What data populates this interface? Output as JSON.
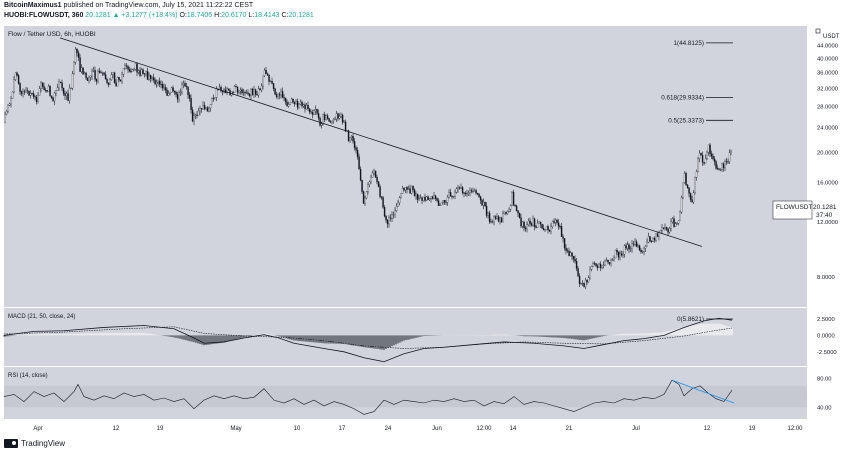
{
  "header": {
    "publisher": "BitcoinMaximus1",
    "published_text": "published on TradingView.com, July 15, 2021 11:22:22 CEST",
    "symbol": "HUOBI:FLOWUSDT, 360",
    "last_price": "20.1281",
    "arrow": "▲",
    "change": "+3.1277 (+18.4%)",
    "o_label": "O:",
    "o_value": "18.7406",
    "h_label": "H:",
    "h_value": "20.6170",
    "l_label": "L:",
    "l_value": "18.4143",
    "c_label": "C:",
    "c_value": "20.1281"
  },
  "footer": {
    "brand": "TradingView"
  },
  "colors": {
    "background": "#d1d4dc",
    "candle": "#131722",
    "trendline": "#131722",
    "rsi_trendline": "#2196f3",
    "rsi_band": "#c6c9d1"
  },
  "chart_data": {
    "type": "candlestick",
    "pane_title": "Flow / Tether USD, 6h, HUOBI",
    "quote_unit": "USDT",
    "symbol_tag": "FLOWUSDT",
    "last_price": "20.1281",
    "countdown": "37:40",
    "ylim": [
      6.5,
      50
    ],
    "y_ticks": [
      "44.0000",
      "40.0000",
      "36.0000",
      "32.0000",
      "28.0000",
      "24.0000",
      "20.0000",
      "16.0000",
      "12.0000",
      "8.0000"
    ],
    "x_ticks": [
      "Apr",
      "12",
      "19",
      "May",
      "10",
      "17",
      "24",
      "Jun",
      "12:00",
      "14",
      "21",
      "Jul",
      "12",
      "19",
      "12:00"
    ],
    "price_path": [
      [
        0,
        25.0
      ],
      [
        4,
        28.5
      ],
      [
        8,
        31.0
      ],
      [
        12,
        35.5
      ],
      [
        16,
        30.5
      ],
      [
        20,
        32.0
      ],
      [
        24,
        30.5
      ],
      [
        28,
        31.5
      ],
      [
        32,
        29.0
      ],
      [
        36,
        33.0
      ],
      [
        40,
        31.5
      ],
      [
        44,
        32.0
      ],
      [
        48,
        29.5
      ],
      [
        52,
        31.0
      ],
      [
        56,
        33.5
      ],
      [
        60,
        31.5
      ],
      [
        64,
        30.0
      ],
      [
        68,
        33.5
      ],
      [
        72,
        44.8
      ],
      [
        76,
        37.0
      ],
      [
        80,
        36.5
      ],
      [
        84,
        34.5
      ],
      [
        88,
        36.5
      ],
      [
        92,
        34.5
      ],
      [
        96,
        37.0
      ],
      [
        100,
        36.0
      ],
      [
        104,
        33.5
      ],
      [
        108,
        35.5
      ],
      [
        112,
        33.5
      ],
      [
        116,
        34.5
      ],
      [
        120,
        37.0
      ],
      [
        124,
        38.0
      ],
      [
        128,
        36.5
      ],
      [
        132,
        37.5
      ],
      [
        136,
        36.0
      ],
      [
        140,
        36.5
      ],
      [
        144,
        35.0
      ],
      [
        148,
        34.5
      ],
      [
        152,
        34.0
      ],
      [
        156,
        33.5
      ],
      [
        160,
        31.5
      ],
      [
        164,
        30.0
      ],
      [
        168,
        31.5
      ],
      [
        172,
        30.0
      ],
      [
        176,
        31.0
      ],
      [
        180,
        33.0
      ],
      [
        184,
        31.5
      ],
      [
        188,
        25.5
      ],
      [
        192,
        26.5
      ],
      [
        196,
        28.0
      ],
      [
        200,
        28.5
      ],
      [
        204,
        27.0
      ],
      [
        208,
        29.0
      ],
      [
        212,
        31.0
      ],
      [
        216,
        32.5
      ],
      [
        220,
        31.5
      ],
      [
        224,
        31.5
      ],
      [
        228,
        31.0
      ],
      [
        232,
        32.0
      ],
      [
        236,
        31.0
      ],
      [
        240,
        30.5
      ],
      [
        244,
        31.0
      ],
      [
        248,
        31.0
      ],
      [
        252,
        31.5
      ],
      [
        256,
        31.0
      ],
      [
        260,
        37.0
      ],
      [
        264,
        34.0
      ],
      [
        268,
        33.0
      ],
      [
        272,
        30.5
      ],
      [
        276,
        31.0
      ],
      [
        280,
        30.0
      ],
      [
        284,
        28.0
      ],
      [
        288,
        29.5
      ],
      [
        292,
        28.5
      ],
      [
        296,
        29.0
      ],
      [
        300,
        28.0
      ],
      [
        304,
        27.5
      ],
      [
        308,
        27.0
      ],
      [
        312,
        27.5
      ],
      [
        316,
        25.0
      ],
      [
        320,
        26.0
      ],
      [
        324,
        25.5
      ],
      [
        328,
        25.0
      ],
      [
        332,
        26.0
      ],
      [
        336,
        26.0
      ],
      [
        340,
        24.5
      ],
      [
        344,
        22.5
      ],
      [
        348,
        22.0
      ],
      [
        352,
        20.0
      ],
      [
        356,
        17.0
      ],
      [
        360,
        13.5
      ],
      [
        364,
        15.5
      ],
      [
        368,
        17.5
      ],
      [
        372,
        16.5
      ],
      [
        376,
        14.5
      ],
      [
        380,
        13.0
      ],
      [
        384,
        12.0
      ],
      [
        388,
        12.5
      ],
      [
        392,
        13.5
      ],
      [
        396,
        14.5
      ],
      [
        400,
        15.5
      ],
      [
        404,
        15.0
      ],
      [
        408,
        15.5
      ],
      [
        412,
        14.5
      ],
      [
        416,
        14.0
      ],
      [
        420,
        14.0
      ],
      [
        424,
        14.5
      ],
      [
        428,
        14.0
      ],
      [
        432,
        14.5
      ],
      [
        436,
        13.5
      ],
      [
        440,
        14.0
      ],
      [
        444,
        14.5
      ],
      [
        448,
        14.5
      ],
      [
        452,
        15.0
      ],
      [
        456,
        15.5
      ],
      [
        460,
        15.0
      ],
      [
        464,
        14.5
      ],
      [
        468,
        15.0
      ],
      [
        472,
        14.5
      ],
      [
        476,
        14.0
      ],
      [
        480,
        13.5
      ],
      [
        484,
        12.5
      ],
      [
        488,
        12.0
      ],
      [
        492,
        12.5
      ],
      [
        496,
        12.0
      ],
      [
        500,
        12.5
      ],
      [
        504,
        13.0
      ],
      [
        508,
        14.5
      ],
      [
        512,
        13.0
      ],
      [
        516,
        12.0
      ],
      [
        520,
        11.5
      ],
      [
        524,
        11.8
      ],
      [
        528,
        12.0
      ],
      [
        532,
        11.8
      ],
      [
        536,
        11.6
      ],
      [
        540,
        11.5
      ],
      [
        544,
        11.2
      ],
      [
        548,
        11.8
      ],
      [
        552,
        12.0
      ],
      [
        556,
        11.5
      ],
      [
        560,
        10.0
      ],
      [
        564,
        9.5
      ],
      [
        568,
        9.5
      ],
      [
        572,
        8.5
      ],
      [
        576,
        7.5
      ],
      [
        580,
        7.5
      ],
      [
        584,
        8.0
      ],
      [
        588,
        8.5
      ],
      [
        592,
        8.8
      ],
      [
        596,
        8.5
      ],
      [
        600,
        9.0
      ],
      [
        604,
        9.0
      ],
      [
        608,
        9.2
      ],
      [
        612,
        9.5
      ],
      [
        616,
        9.5
      ],
      [
        620,
        9.8
      ],
      [
        624,
        10.0
      ],
      [
        628,
        10.0
      ],
      [
        632,
        10.2
      ],
      [
        636,
        9.8
      ],
      [
        640,
        10.0
      ],
      [
        644,
        10.5
      ],
      [
        648,
        10.5
      ],
      [
        652,
        10.8
      ],
      [
        656,
        11.0
      ],
      [
        660,
        11.5
      ],
      [
        664,
        11.0
      ],
      [
        668,
        12.0
      ],
      [
        672,
        11.5
      ],
      [
        676,
        13.0
      ],
      [
        680,
        17.0
      ],
      [
        684,
        15.0
      ],
      [
        688,
        14.0
      ],
      [
        692,
        17.5
      ],
      [
        696,
        20.0
      ],
      [
        700,
        18.0
      ],
      [
        704,
        21.0
      ],
      [
        708,
        19.5
      ],
      [
        712,
        18.0
      ],
      [
        716,
        17.5
      ],
      [
        720,
        18.5
      ],
      [
        724,
        19.0
      ],
      [
        728,
        20.1
      ]
    ],
    "trendline": [
      [
        56,
        46.5
      ],
      [
        698,
        10.0
      ]
    ],
    "fibonacci": [
      {
        "label": "1(44.8125)",
        "value": 44.8125
      },
      {
        "label": "0.618(29.9334)",
        "value": 29.9334
      },
      {
        "label": "0.5(25.3373)",
        "value": 25.3373
      },
      {
        "label": "0(5.8621)",
        "value": 5.8621
      }
    ],
    "macd": {
      "title": "MACD (21, 50, close, 24)",
      "y_ticks": [
        "2.5000",
        "0.0000",
        "-2.5000"
      ],
      "ylim": [
        -4.5,
        4.0
      ],
      "macd_path": [
        [
          0,
          0.0
        ],
        [
          30,
          0.6
        ],
        [
          60,
          0.7
        ],
        [
          100,
          1.2
        ],
        [
          140,
          1.5
        ],
        [
          170,
          1.0
        ],
        [
          190,
          -0.4
        ],
        [
          200,
          -1.2
        ],
        [
          220,
          -1.0
        ],
        [
          240,
          -0.4
        ],
        [
          260,
          0.1
        ],
        [
          275,
          -0.4
        ],
        [
          290,
          -1.2
        ],
        [
          320,
          -2.0
        ],
        [
          340,
          -2.5
        ],
        [
          360,
          -3.4
        ],
        [
          380,
          -4.0
        ],
        [
          400,
          -2.8
        ],
        [
          420,
          -2.0
        ],
        [
          440,
          -1.8
        ],
        [
          470,
          -1.4
        ],
        [
          500,
          -1.0
        ],
        [
          530,
          -1.2
        ],
        [
          560,
          -1.6
        ],
        [
          580,
          -2.0
        ],
        [
          600,
          -1.4
        ],
        [
          620,
          -0.8
        ],
        [
          640,
          -0.5
        ],
        [
          660,
          0.0
        ],
        [
          680,
          1.2
        ],
        [
          700,
          2.2
        ],
        [
          715,
          2.6
        ],
        [
          728,
          2.3
        ]
      ],
      "signal_path": [
        [
          0,
          0.2
        ],
        [
          60,
          0.5
        ],
        [
          120,
          1.0
        ],
        [
          170,
          1.3
        ],
        [
          200,
          0.3
        ],
        [
          240,
          -0.1
        ],
        [
          280,
          -0.3
        ],
        [
          320,
          -0.8
        ],
        [
          360,
          -1.6
        ],
        [
          400,
          -2.0
        ],
        [
          440,
          -1.8
        ],
        [
          480,
          -1.3
        ],
        [
          520,
          -1.0
        ],
        [
          560,
          -1.2
        ],
        [
          600,
          -1.3
        ],
        [
          640,
          -0.8
        ],
        [
          680,
          -0.1
        ],
        [
          710,
          0.7
        ],
        [
          728,
          1.1
        ]
      ]
    },
    "rsi": {
      "title": "RSI (14, close)",
      "y_ticks": [
        "80.00",
        "40.00"
      ],
      "ylim": [
        25,
        95
      ],
      "band": [
        40,
        70
      ],
      "trendline": [
        [
          668,
          78
        ],
        [
          730,
          46
        ]
      ],
      "rsi_path": [
        [
          0,
          55
        ],
        [
          10,
          58
        ],
        [
          20,
          48
        ],
        [
          30,
          62
        ],
        [
          40,
          55
        ],
        [
          50,
          60
        ],
        [
          60,
          48
        ],
        [
          70,
          62
        ],
        [
          74,
          72
        ],
        [
          80,
          55
        ],
        [
          90,
          50
        ],
        [
          100,
          56
        ],
        [
          110,
          52
        ],
        [
          120,
          60
        ],
        [
          130,
          55
        ],
        [
          140,
          58
        ],
        [
          150,
          50
        ],
        [
          160,
          53
        ],
        [
          170,
          48
        ],
        [
          180,
          52
        ],
        [
          190,
          38
        ],
        [
          200,
          50
        ],
        [
          210,
          56
        ],
        [
          220,
          52
        ],
        [
          230,
          56
        ],
        [
          240,
          52
        ],
        [
          250,
          54
        ],
        [
          260,
          66
        ],
        [
          270,
          50
        ],
        [
          280,
          46
        ],
        [
          290,
          52
        ],
        [
          300,
          44
        ],
        [
          310,
          50
        ],
        [
          320,
          42
        ],
        [
          330,
          48
        ],
        [
          340,
          44
        ],
        [
          350,
          38
        ],
        [
          360,
          30
        ],
        [
          370,
          34
        ],
        [
          380,
          50
        ],
        [
          390,
          44
        ],
        [
          400,
          50
        ],
        [
          410,
          48
        ],
        [
          420,
          46
        ],
        [
          430,
          50
        ],
        [
          440,
          48
        ],
        [
          450,
          52
        ],
        [
          460,
          48
        ],
        [
          470,
          50
        ],
        [
          480,
          42
        ],
        [
          490,
          48
        ],
        [
          500,
          45
        ],
        [
          510,
          55
        ],
        [
          520,
          44
        ],
        [
          530,
          48
        ],
        [
          540,
          46
        ],
        [
          550,
          42
        ],
        [
          560,
          38
        ],
        [
          570,
          34
        ],
        [
          580,
          40
        ],
        [
          590,
          46
        ],
        [
          600,
          48
        ],
        [
          610,
          46
        ],
        [
          620,
          52
        ],
        [
          630,
          50
        ],
        [
          640,
          54
        ],
        [
          650,
          52
        ],
        [
          660,
          58
        ],
        [
          668,
          78
        ],
        [
          675,
          72
        ],
        [
          680,
          56
        ],
        [
          688,
          66
        ],
        [
          696,
          70
        ],
        [
          704,
          60
        ],
        [
          712,
          52
        ],
        [
          720,
          48
        ],
        [
          728,
          64
        ]
      ]
    }
  }
}
